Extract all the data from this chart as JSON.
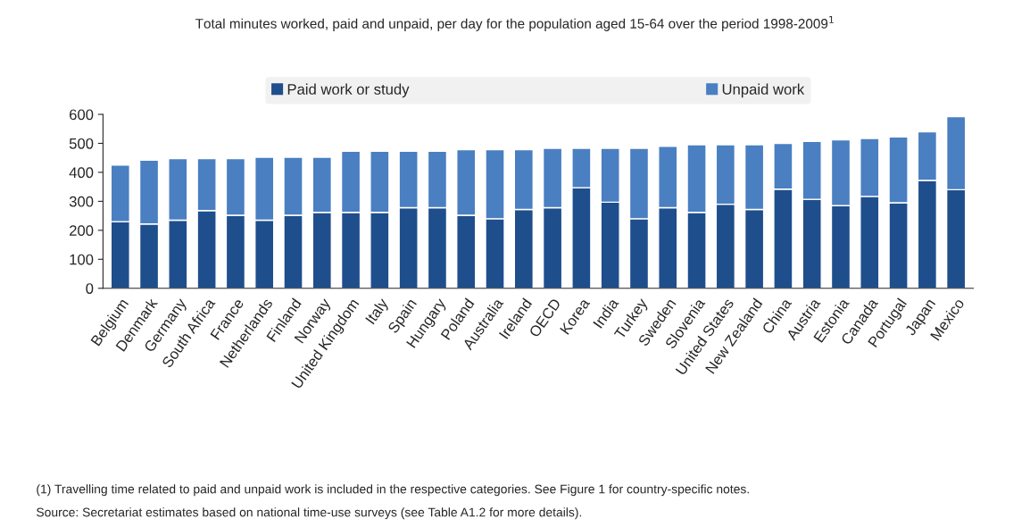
{
  "chart_data": {
    "type": "bar",
    "stacked": true,
    "title": "Total minutes worked, paid and unpaid, per day for the population aged 15-64 over the period 1998-2009$^{1}$",
    "categories": [
      "Belgium",
      "Denmark",
      "Germany",
      "South Africa",
      "France",
      "Netherlands",
      "Finland",
      "Norway",
      "United Kingdom",
      "Italy",
      "Spain",
      "Hungary",
      "Poland",
      "Australia",
      "Ireland",
      "OECD",
      "Korea",
      "India",
      "Turkey",
      "Sweden",
      "Slovenia",
      "United States",
      "New Zealand",
      "China",
      "Austria",
      "Estonia",
      "Canada",
      "Portugal",
      "Japan",
      "Mexico"
    ],
    "series": [
      {
        "name": "Paid work or study",
        "color": "#1f4e8c",
        "values": [
          230,
          222,
          235,
          268,
          252,
          235,
          252,
          262,
          262,
          262,
          278,
          278,
          252,
          240,
          272,
          278,
          347,
          297,
          240,
          278,
          262,
          290,
          272,
          342,
          307,
          285,
          317,
          295,
          372,
          340
        ]
      },
      {
        "name": "Unpaid work",
        "color": "#4a7fc1",
        "values": [
          195,
          220,
          212,
          179,
          195,
          217,
          200,
          190,
          211,
          211,
          195,
          195,
          226,
          238,
          206,
          205,
          136,
          186,
          243,
          212,
          233,
          205,
          223,
          158,
          200,
          227,
          200,
          227,
          168,
          252
        ]
      }
    ],
    "ylim": [
      0,
      600
    ],
    "yticks": [
      0,
      100,
      200,
      300,
      400,
      500,
      600
    ],
    "grid": false,
    "legend": "top",
    "annotations": [
      "(1) Travelling time related to paid and unpaid work is included in the respective categories. See Figure 1 for country-specific notes.",
      "Source: Secretariat estimates based on national time-use surveys (see Table A1.2 for more details)."
    ]
  }
}
